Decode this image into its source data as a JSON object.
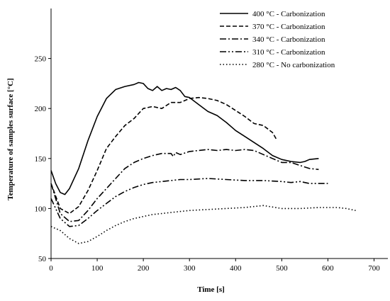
{
  "chart_data": {
    "type": "line",
    "xlabel": "Time [s]",
    "ylabel": "Temperature of samples surface [°C]",
    "xlim": [
      0,
      730
    ],
    "ylim": [
      50,
      300
    ],
    "xticks": [
      0,
      100,
      200,
      300,
      400,
      500,
      600,
      700
    ],
    "yticks": [
      50,
      100,
      150,
      200,
      250
    ],
    "grid": false,
    "legend_position": "top-right",
    "series": [
      {
        "name": "400 °C - Carbonization",
        "dash": "solid",
        "x": [
          0,
          10,
          20,
          30,
          40,
          60,
          80,
          100,
          120,
          140,
          160,
          180,
          190,
          200,
          210,
          220,
          230,
          240,
          250,
          260,
          270,
          280,
          290,
          300,
          320,
          340,
          360,
          380,
          400,
          420,
          440,
          460,
          480,
          500,
          520,
          540,
          550,
          560,
          580
        ],
        "y": [
          138,
          125,
          116,
          114,
          120,
          140,
          168,
          192,
          210,
          219,
          222,
          224,
          226,
          225,
          220,
          218,
          222,
          218,
          220,
          219,
          221,
          218,
          212,
          211,
          204,
          197,
          193,
          186,
          178,
          172,
          166,
          160,
          153,
          149,
          147,
          146,
          147,
          149,
          150
        ]
      },
      {
        "name": "370 °C - Carbonization",
        "dash": "dash",
        "x": [
          0,
          20,
          40,
          60,
          80,
          100,
          120,
          140,
          160,
          180,
          200,
          220,
          240,
          260,
          280,
          300,
          320,
          340,
          360,
          380,
          400,
          420,
          440,
          460,
          480,
          490
        ],
        "y": [
          125,
          100,
          95,
          102,
          118,
          138,
          160,
          172,
          183,
          190,
          200,
          202,
          200,
          206,
          206,
          210,
          211,
          210,
          208,
          204,
          198,
          192,
          185,
          183,
          176,
          168
        ]
      },
      {
        "name": "340 °C - Carbonization",
        "dash": "dashdot",
        "x": [
          0,
          20,
          40,
          60,
          80,
          100,
          120,
          140,
          160,
          180,
          200,
          220,
          240,
          260,
          265,
          270,
          280,
          300,
          320,
          340,
          360,
          380,
          400,
          420,
          440,
          460,
          480,
          500,
          520,
          540,
          560,
          580
        ],
        "y": [
          125,
          95,
          87,
          88,
          98,
          110,
          120,
          130,
          140,
          146,
          150,
          153,
          155,
          155,
          152,
          156,
          154,
          157,
          158,
          159,
          158,
          159,
          158,
          159,
          158,
          154,
          150,
          146,
          146,
          143,
          140,
          139
        ]
      },
      {
        "name": "310 °C - Carbonization",
        "dash": "dashdotdot",
        "x": [
          0,
          20,
          40,
          60,
          80,
          100,
          120,
          140,
          160,
          180,
          200,
          220,
          240,
          260,
          280,
          300,
          340,
          380,
          420,
          460,
          500,
          520,
          540,
          560,
          580,
          600
        ],
        "y": [
          110,
          90,
          82,
          83,
          90,
          98,
          105,
          112,
          117,
          121,
          124,
          126,
          127,
          128,
          129,
          129,
          130,
          129,
          128,
          128,
          127,
          126,
          127,
          125,
          125,
          125
        ]
      },
      {
        "name": "280 °C - No carbonization",
        "dash": "dot",
        "x": [
          0,
          20,
          40,
          60,
          80,
          100,
          120,
          140,
          160,
          180,
          200,
          220,
          240,
          260,
          280,
          300,
          340,
          380,
          420,
          460,
          500,
          540,
          580,
          620,
          640,
          660
        ],
        "y": [
          82,
          78,
          70,
          65,
          67,
          72,
          78,
          83,
          87,
          90,
          92,
          94,
          95,
          96,
          97,
          98,
          99,
          100,
          101,
          103,
          100,
          100,
          101,
          101,
          100,
          98
        ]
      }
    ]
  }
}
